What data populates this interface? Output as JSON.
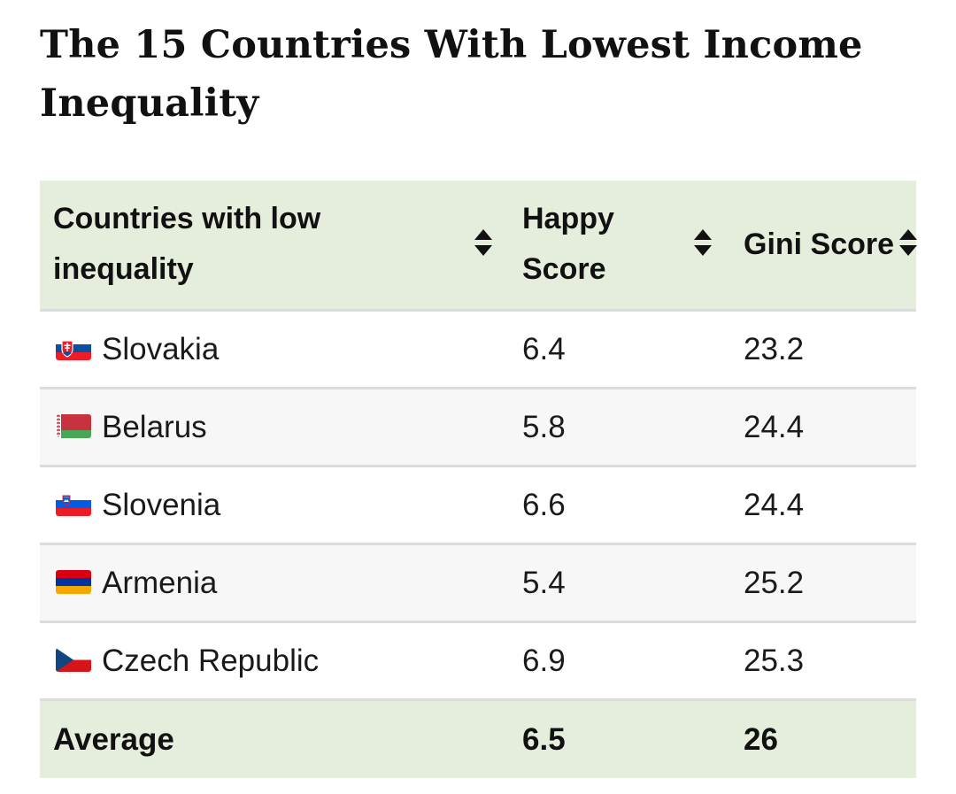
{
  "title": "The 15 Countries With Lowest Income Inequality",
  "table": {
    "headers": {
      "country": "Countries with low inequality",
      "happy": "Happy Score",
      "gini": "Gini Score"
    },
    "rows": [
      {
        "flag": "slovakia-flag-icon",
        "country": "Slovakia",
        "happy": "6.4",
        "gini": "23.2"
      },
      {
        "flag": "belarus-flag-icon",
        "country": "Belarus",
        "happy": "5.8",
        "gini": "24.4"
      },
      {
        "flag": "slovenia-flag-icon",
        "country": "Slovenia",
        "happy": "6.6",
        "gini": "24.4"
      },
      {
        "flag": "armenia-flag-icon",
        "country": "Armenia",
        "happy": "5.4",
        "gini": "25.2"
      },
      {
        "flag": "czech-flag-icon",
        "country": "Czech Republic",
        "happy": "6.9",
        "gini": "25.3"
      }
    ],
    "footer": {
      "label": "Average",
      "happy": "6.5",
      "gini": "26"
    }
  },
  "colors": {
    "header_bg": "#e5eedc",
    "row_alt_bg": "#f7f7f7",
    "divider": "#dcdcdc"
  }
}
